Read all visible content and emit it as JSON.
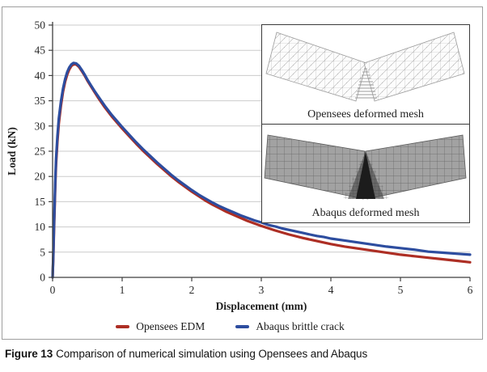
{
  "figure": {
    "caption_label": "Figure 13",
    "caption_text": "Comparison of numerical simulation using Opensees and Abaqus"
  },
  "insets": {
    "opensees_label": "Opensees deformed mesh",
    "abaqus_label": "Abaqus deformed mesh"
  },
  "colors": {
    "opensees_red": "#ad2e24",
    "abaqus_blue": "#2d4d9f",
    "grid": "#cbcbcb",
    "axis": "#3f3f3f",
    "tick_text": "#2a2a2a",
    "figure_border": "#9e9e9e",
    "inset_border": "#3a3a3a"
  },
  "chart_data": {
    "type": "line",
    "title": "",
    "xlabel": "Displacement (mm)",
    "ylabel": "Load (kN)",
    "xlim": [
      0,
      6
    ],
    "ylim": [
      0,
      50
    ],
    "x_ticks": [
      0,
      1,
      2,
      3,
      4,
      5,
      6
    ],
    "y_ticks": [
      0,
      5,
      10,
      15,
      20,
      25,
      30,
      35,
      40,
      45,
      50
    ],
    "grid": "horizontal",
    "legend_position": "bottom-center",
    "series": [
      {
        "name": "Opensees EDM",
        "color": "#ad2e24",
        "peak_load_kN": 42.2,
        "peak_displacement_mm": 0.3,
        "points": [
          [
            0,
            0
          ],
          [
            0.01,
            4
          ],
          [
            0.02,
            9
          ],
          [
            0.03,
            14
          ],
          [
            0.04,
            18.5
          ],
          [
            0.05,
            22.5
          ],
          [
            0.07,
            27
          ],
          [
            0.09,
            30.5
          ],
          [
            0.12,
            34
          ],
          [
            0.15,
            36.8
          ],
          [
            0.18,
            38.8
          ],
          [
            0.21,
            40.2
          ],
          [
            0.24,
            41.2
          ],
          [
            0.27,
            41.9
          ],
          [
            0.3,
            42.2
          ],
          [
            0.34,
            42.2
          ],
          [
            0.38,
            41.7
          ],
          [
            0.42,
            40.9
          ],
          [
            0.46,
            40
          ],
          [
            0.5,
            39
          ],
          [
            0.55,
            37.9
          ],
          [
            0.6,
            36.8
          ],
          [
            0.65,
            35.7
          ],
          [
            0.7,
            34.7
          ],
          [
            0.75,
            33.7
          ],
          [
            0.8,
            32.8
          ],
          [
            0.85,
            31.9
          ],
          [
            0.9,
            31.1
          ],
          [
            0.95,
            30.3
          ],
          [
            1,
            29.5
          ],
          [
            1.1,
            28
          ],
          [
            1.2,
            26.5
          ],
          [
            1.3,
            25.1
          ],
          [
            1.4,
            23.8
          ],
          [
            1.5,
            22.5
          ],
          [
            1.6,
            21.3
          ],
          [
            1.7,
            20.1
          ],
          [
            1.8,
            19
          ],
          [
            1.9,
            18
          ],
          [
            2,
            17
          ],
          [
            2.1,
            16.1
          ],
          [
            2.2,
            15.2
          ],
          [
            2.3,
            14.4
          ],
          [
            2.4,
            13.7
          ],
          [
            2.5,
            13
          ],
          [
            2.6,
            12.4
          ],
          [
            2.7,
            11.8
          ],
          [
            2.8,
            11.2
          ],
          [
            2.9,
            10.7
          ],
          [
            3,
            10.2
          ],
          [
            3.2,
            9.3
          ],
          [
            3.4,
            8.5
          ],
          [
            3.6,
            7.8
          ],
          [
            3.8,
            7.2
          ],
          [
            4,
            6.6
          ],
          [
            4.2,
            6.1
          ],
          [
            4.4,
            5.7
          ],
          [
            4.6,
            5.3
          ],
          [
            4.8,
            4.9
          ],
          [
            5,
            4.5
          ],
          [
            5.2,
            4.2
          ],
          [
            5.4,
            3.9
          ],
          [
            5.6,
            3.6
          ],
          [
            5.8,
            3.3
          ],
          [
            6,
            3
          ]
        ]
      },
      {
        "name": "Abaqus brittle crack",
        "color": "#2d4d9f",
        "peak_load_kN": 42.5,
        "peak_displacement_mm": 0.3,
        "points": [
          [
            0,
            0
          ],
          [
            0.01,
            4.5
          ],
          [
            0.02,
            10
          ],
          [
            0.03,
            15
          ],
          [
            0.04,
            19.5
          ],
          [
            0.05,
            23.5
          ],
          [
            0.07,
            28
          ],
          [
            0.09,
            31.5
          ],
          [
            0.12,
            34.8
          ],
          [
            0.15,
            37.4
          ],
          [
            0.18,
            39.3
          ],
          [
            0.21,
            40.7
          ],
          [
            0.24,
            41.6
          ],
          [
            0.27,
            42.2
          ],
          [
            0.3,
            42.5
          ],
          [
            0.34,
            42.4
          ],
          [
            0.38,
            41.9
          ],
          [
            0.42,
            41.1
          ],
          [
            0.46,
            40.2
          ],
          [
            0.5,
            39.2
          ],
          [
            0.55,
            38.1
          ],
          [
            0.6,
            37
          ],
          [
            0.65,
            36
          ],
          [
            0.7,
            35
          ],
          [
            0.75,
            34
          ],
          [
            0.8,
            33.1
          ],
          [
            0.85,
            32.2
          ],
          [
            0.9,
            31.4
          ],
          [
            0.95,
            30.6
          ],
          [
            1,
            29.8
          ],
          [
            1.1,
            28.3
          ],
          [
            1.2,
            26.8
          ],
          [
            1.3,
            25.4
          ],
          [
            1.4,
            24.1
          ],
          [
            1.5,
            22.8
          ],
          [
            1.6,
            21.6
          ],
          [
            1.7,
            20.4
          ],
          [
            1.8,
            19.3
          ],
          [
            1.9,
            18.3
          ],
          [
            2,
            17.3
          ],
          [
            2.1,
            16.4
          ],
          [
            2.2,
            15.6
          ],
          [
            2.3,
            14.8
          ],
          [
            2.4,
            14.1
          ],
          [
            2.5,
            13.5
          ],
          [
            2.6,
            12.9
          ],
          [
            2.7,
            12.3
          ],
          [
            2.8,
            11.8
          ],
          [
            2.9,
            11.3
          ],
          [
            3,
            10.9
          ],
          [
            3.1,
            10.4
          ],
          [
            3.2,
            10.1
          ],
          [
            3.3,
            9.7
          ],
          [
            3.4,
            9.4
          ],
          [
            3.5,
            9.1
          ],
          [
            3.6,
            8.8
          ],
          [
            3.7,
            8.5
          ],
          [
            3.8,
            8.2
          ],
          [
            3.9,
            8
          ],
          [
            4,
            7.7
          ],
          [
            4.2,
            7.3
          ],
          [
            4.4,
            6.9
          ],
          [
            4.6,
            6.5
          ],
          [
            4.8,
            6.1
          ],
          [
            5,
            5.8
          ],
          [
            5.2,
            5.5
          ],
          [
            5.4,
            5.1
          ],
          [
            5.6,
            4.9
          ],
          [
            5.8,
            4.7
          ],
          [
            6,
            4.5
          ]
        ]
      }
    ]
  }
}
